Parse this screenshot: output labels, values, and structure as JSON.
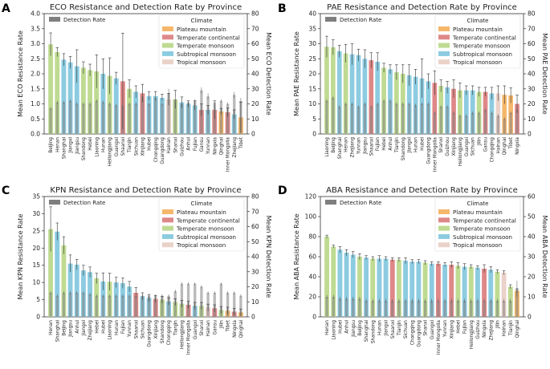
{
  "legend_labels": {
    "detection": "Detection Rate",
    "climate_title": "Climate",
    "plateau": "Plateau mountain",
    "continental": "Temperate continental",
    "temperate_monsoon": "Temperate monsoon",
    "subtropical": "Subtropical monsoon",
    "tropical": "Tropical monsoon"
  },
  "colors": {
    "plateau": "#f5b76a",
    "continental": "#df8888",
    "temperate_monsoon": "#bfdb92",
    "subtropical": "#8ccbe0",
    "tropical": "#ead2c9",
    "detection_bar": "#7f7f7f"
  },
  "chart_data": [
    {
      "panel": "A",
      "type": "bar",
      "title": "ECO Resistance and Detection Rate by Province",
      "ylabel": "Mean ECO Resistance Rate",
      "ylabel_right": "Mean ECO Detection Rate",
      "ylim": [
        0,
        4
      ],
      "yticks": [
        0.0,
        0.5,
        1.0,
        1.5,
        2.0,
        2.5,
        3.0,
        3.5,
        4.0
      ],
      "ylim_right": [
        0,
        80
      ],
      "yticks_right": [
        0,
        10,
        20,
        30,
        40,
        50,
        60,
        70,
        80
      ],
      "categories": [
        "Beijing",
        "Henan",
        "Shanghai",
        "Jiangxi",
        "Jiangsu",
        "Shandong",
        "Hebei",
        "Liaoning",
        "Hunan",
        "Heilongjiang",
        "Guangxi",
        "Shaanxi",
        "Tianjin",
        "Sichuan",
        "Xinjiang",
        "Hubei",
        "Chongqing",
        "Guangdong",
        "Hainan",
        "Shanxi",
        "Guizhou",
        "Anhui",
        "Fujian",
        "Gansu",
        "Yunnan",
        "Ningxia",
        "Qinghai",
        "Inner Mongolia",
        "Zhejiang",
        "Tibet"
      ],
      "climate": [
        "temperate_monsoon",
        "temperate_monsoon",
        "subtropical",
        "subtropical",
        "subtropical",
        "temperate_monsoon",
        "temperate_monsoon",
        "temperate_monsoon",
        "subtropical",
        "temperate_monsoon",
        "subtropical",
        "continental",
        "temperate_monsoon",
        "subtropical",
        "continental",
        "subtropical",
        "subtropical",
        "subtropical",
        "tropical",
        "temperate_monsoon",
        "subtropical",
        "subtropical",
        "subtropical",
        "continental",
        "subtropical",
        "continental",
        "plateau",
        "continental",
        "subtropical",
        "plateau"
      ],
      "resistance": [
        2.98,
        2.72,
        2.47,
        2.38,
        2.25,
        2.2,
        2.12,
        2.08,
        2.0,
        1.93,
        1.85,
        1.75,
        1.5,
        1.4,
        1.35,
        1.26,
        1.26,
        1.2,
        1.15,
        1.15,
        1.05,
        1.0,
        0.95,
        0.8,
        0.8,
        0.8,
        0.75,
        0.72,
        0.65,
        0.55
      ],
      "resistance_err": [
        0.38,
        0.15,
        0.2,
        0.2,
        0.55,
        0.2,
        0.2,
        0.55,
        0.5,
        0.6,
        0.2,
        1.6,
        0.3,
        0.2,
        0.3,
        0.15,
        0.15,
        0.12,
        0.2,
        0.3,
        0.18,
        0.1,
        0.15,
        0.2,
        0.15,
        0.3,
        0.1,
        0.15,
        0.15,
        0.5
      ],
      "detection": [
        17,
        21,
        21,
        22,
        20,
        20,
        20,
        22,
        21,
        20,
        19,
        19,
        20,
        20,
        25,
        20,
        24,
        20,
        27,
        23,
        20,
        21,
        22,
        29,
        25,
        21,
        22,
        20,
        26,
        22
      ],
      "detection_err": [
        1,
        1,
        1,
        1,
        1,
        1,
        1,
        1,
        1,
        1,
        1,
        1,
        1,
        1,
        3,
        1,
        2,
        1,
        3,
        2,
        1,
        1,
        1,
        2,
        2,
        1,
        1,
        1,
        2,
        2
      ],
      "legend_pos": "top-right"
    },
    {
      "panel": "B",
      "type": "bar",
      "title": "PAE Resistance and Detection Rate by Province",
      "ylabel": "Mean PAE Resistance Rate",
      "ylabel_right": "Mean PAE Detection Rate",
      "ylim": [
        0,
        40
      ],
      "yticks": [
        0,
        5,
        10,
        15,
        20,
        25,
        30,
        35,
        40
      ],
      "ylim_right": [
        0,
        80
      ],
      "yticks_right": [
        0,
        10,
        20,
        30,
        40,
        50,
        60,
        70,
        80
      ],
      "categories": [
        "Liaoning",
        "Beijing",
        "Shanghai",
        "Henan",
        "Zhejiang",
        "Yunnan",
        "Jiangsu",
        "Shaanxi",
        "Fujian",
        "Hebei",
        "Anhui",
        "Tianjin",
        "Shandong",
        "Jiangxi",
        "Hunan",
        "Hubei",
        "Guangdong",
        "Inner Mongolia",
        "Shanxi",
        "Guizhou",
        "Xinjiang",
        "Heilongjiang",
        "Guangxi",
        "Sichuan",
        "Jilin",
        "Gansu",
        "Chongqing",
        "Hainan",
        "Qinghai",
        "Tibet",
        "Ningxia"
      ],
      "climate": [
        "temperate_monsoon",
        "temperate_monsoon",
        "subtropical",
        "temperate_monsoon",
        "subtropical",
        "subtropical",
        "subtropical",
        "continental",
        "subtropical",
        "temperate_monsoon",
        "subtropical",
        "temperate_monsoon",
        "temperate_monsoon",
        "subtropical",
        "subtropical",
        "subtropical",
        "subtropical",
        "continental",
        "temperate_monsoon",
        "subtropical",
        "continental",
        "temperate_monsoon",
        "subtropical",
        "subtropical",
        "temperate_monsoon",
        "continental",
        "subtropical",
        "tropical",
        "plateau",
        "plateau",
        "continental"
      ],
      "resistance": [
        29,
        28.8,
        27.5,
        26.8,
        26.5,
        26.2,
        25,
        24.5,
        24,
        22,
        21.5,
        20.5,
        20,
        19.5,
        19,
        18.5,
        17.5,
        17,
        16,
        15.5,
        15,
        14.5,
        14.5,
        14.5,
        14,
        14,
        13.5,
        13.5,
        13,
        12.8,
        10
      ],
      "resistance_err": [
        3.5,
        2.5,
        2,
        3,
        3.5,
        2,
        3,
        2.5,
        3,
        1.5,
        1.5,
        2.5,
        3,
        3.5,
        2.5,
        6.5,
        2.5,
        4,
        2,
        2,
        3,
        2.5,
        1.5,
        1.5,
        1.5,
        1.5,
        2,
        2.5,
        3,
        2.5,
        3
      ],
      "detection": [
        22,
        24,
        18,
        20,
        20,
        18,
        20,
        18,
        20,
        22,
        22,
        20,
        20,
        20,
        19,
        20,
        20,
        14,
        18,
        18,
        14,
        12,
        12,
        14,
        14,
        16,
        14,
        12,
        10,
        14,
        16
      ],
      "detection_err": [
        1,
        1,
        1,
        1,
        1,
        1,
        1,
        1,
        1,
        1,
        1,
        1,
        1,
        1,
        1,
        1,
        1,
        1,
        1,
        1,
        1,
        1,
        1,
        1,
        1,
        1,
        1,
        1,
        1,
        1,
        1
      ],
      "legend_pos": "top-right"
    },
    {
      "panel": "C",
      "type": "bar",
      "title": "KPN Resistance and Detection Rate by Province",
      "ylabel": "Mean KPN Resistance Rate",
      "ylabel_right": "Mean KPN Detection Rate",
      "ylim": [
        0,
        35
      ],
      "yticks": [
        0,
        5,
        10,
        15,
        20,
        25,
        30,
        35
      ],
      "ylim_right": [
        0,
        80
      ],
      "yticks_right": [
        0,
        10,
        20,
        30,
        40,
        50,
        60,
        70,
        80
      ],
      "categories": [
        "Henan",
        "Shanghai",
        "Beijing",
        "Jiangsu",
        "Anhui",
        "Jiangxi",
        "Zhejiang",
        "Hebei",
        "Hubei",
        "Liaoning",
        "Hunan",
        "Fujian",
        "Yunnan",
        "Shaanxi",
        "Sichuan",
        "Guangdong",
        "Xinjiang",
        "Shandong",
        "Chongqing",
        "Tianjin",
        "Heilongjiang",
        "Inner Mongolia",
        "Guangxi",
        "Shanxi",
        "Hainan",
        "Gansu",
        "Jilin",
        "Tibet",
        "Ningxia",
        "Qinghai"
      ],
      "climate": [
        "temperate_monsoon",
        "subtropical",
        "temperate_monsoon",
        "subtropical",
        "subtropical",
        "subtropical",
        "subtropical",
        "temperate_monsoon",
        "subtropical",
        "temperate_monsoon",
        "subtropical",
        "subtropical",
        "subtropical",
        "continental",
        "subtropical",
        "subtropical",
        "continental",
        "temperate_monsoon",
        "subtropical",
        "temperate_monsoon",
        "temperate_monsoon",
        "continental",
        "subtropical",
        "temperate_monsoon",
        "tropical",
        "continental",
        "temperate_monsoon",
        "plateau",
        "continental",
        "plateau"
      ],
      "resistance": [
        25.5,
        24.8,
        20.8,
        15.5,
        15.2,
        13.5,
        13,
        11.2,
        10.3,
        10.2,
        10,
        9.8,
        8.8,
        7,
        6,
        5.5,
        5.2,
        5,
        4.5,
        4.3,
        3.8,
        3.5,
        3.2,
        3.2,
        2.7,
        2.5,
        2,
        1.8,
        1.5,
        1.3
      ],
      "resistance_err": [
        6.5,
        2.5,
        2.5,
        2.5,
        1.5,
        1.5,
        1.5,
        1.5,
        2.5,
        2.5,
        1.5,
        1.5,
        1.5,
        1.5,
        1,
        1,
        1,
        1,
        1,
        1,
        1,
        1,
        1,
        1,
        1,
        1,
        1,
        1,
        1,
        1
      ],
      "detection": [
        16,
        14,
        16,
        16,
        16,
        16,
        15,
        14,
        14,
        14,
        14,
        14,
        14,
        14,
        14,
        14,
        14,
        14,
        14,
        17,
        22,
        22,
        22,
        20,
        16,
        16,
        22,
        16,
        16,
        14
      ],
      "detection_err": [
        1,
        1,
        1,
        1,
        1,
        1,
        1,
        1,
        1,
        1,
        1,
        1,
        1,
        1,
        1,
        1,
        1,
        1,
        1,
        1,
        1,
        1,
        1,
        1,
        1,
        1,
        1,
        1,
        1,
        1
      ],
      "legend_pos": "top-right"
    },
    {
      "panel": "D",
      "type": "bar",
      "title": "ABA Resistance and Detection Rate by Province",
      "ylabel": "Mean ABA Resistance Rate",
      "ylabel_right": "Mean ABA Detection Rate",
      "ylim": [
        0,
        120
      ],
      "yticks": [
        0,
        20,
        40,
        60,
        80,
        100,
        120
      ],
      "ylim_right": [
        0,
        60
      ],
      "yticks_right": [
        0,
        10,
        20,
        30,
        40,
        50,
        60
      ],
      "categories": [
        "Henan",
        "Liaoning",
        "Hubei",
        "Anhui",
        "Jiangsu",
        "Beijing",
        "Shanghai",
        "Shandong",
        "Hunan",
        "Jiangxi",
        "Shaanxi",
        "Tianjin",
        "Sichuan",
        "Chongqing",
        "Guangdong",
        "Shanxi",
        "Guangxi",
        "Inner Mongolia",
        "Yunnan",
        "Xinjiang",
        "Hebei",
        "Fujian",
        "Heilongjiang",
        "Guizhou",
        "Ningxia",
        "Zhejiang",
        "Jilin",
        "Hainan",
        "Tianjin",
        "Qinghai"
      ],
      "climate": [
        "temperate_monsoon",
        "temperate_monsoon",
        "subtropical",
        "subtropical",
        "subtropical",
        "temperate_monsoon",
        "subtropical",
        "temperate_monsoon",
        "subtropical",
        "subtropical",
        "continental",
        "temperate_monsoon",
        "subtropical",
        "subtropical",
        "subtropical",
        "temperate_monsoon",
        "subtropical",
        "continental",
        "subtropical",
        "continental",
        "temperate_monsoon",
        "subtropical",
        "temperate_monsoon",
        "subtropical",
        "continental",
        "subtropical",
        "temperate_monsoon",
        "tropical",
        "temperate_monsoon",
        "plateau"
      ],
      "resistance": [
        80,
        70,
        67,
        64,
        62,
        60,
        59,
        58,
        58,
        58,
        57,
        57,
        56,
        55,
        55,
        54,
        53,
        53,
        52,
        52,
        51,
        50,
        50,
        49,
        48,
        47,
        45,
        44,
        30,
        26
      ],
      "resistance_err": [
        1.5,
        1.5,
        3,
        3,
        3,
        3,
        2,
        2,
        3,
        2,
        2,
        2,
        3,
        2,
        2,
        2,
        2,
        2,
        2,
        3,
        3,
        3,
        2,
        2,
        4,
        3,
        2,
        2,
        2,
        2
      ],
      "detection": [
        10,
        10,
        9,
        9,
        9,
        9,
        8,
        8,
        8,
        8,
        8,
        8,
        8,
        8,
        8,
        8,
        8,
        8,
        8,
        8,
        8,
        8,
        8,
        8,
        8,
        8,
        8,
        8,
        8,
        14
      ],
      "detection_err": [
        1,
        1,
        1,
        1,
        1,
        1,
        1,
        1,
        1,
        1,
        1,
        1,
        1,
        1,
        1,
        1,
        1,
        1,
        1,
        1,
        1,
        1,
        1,
        1,
        1,
        1,
        1,
        1,
        1,
        4
      ],
      "legend_pos": "top-right"
    }
  ]
}
